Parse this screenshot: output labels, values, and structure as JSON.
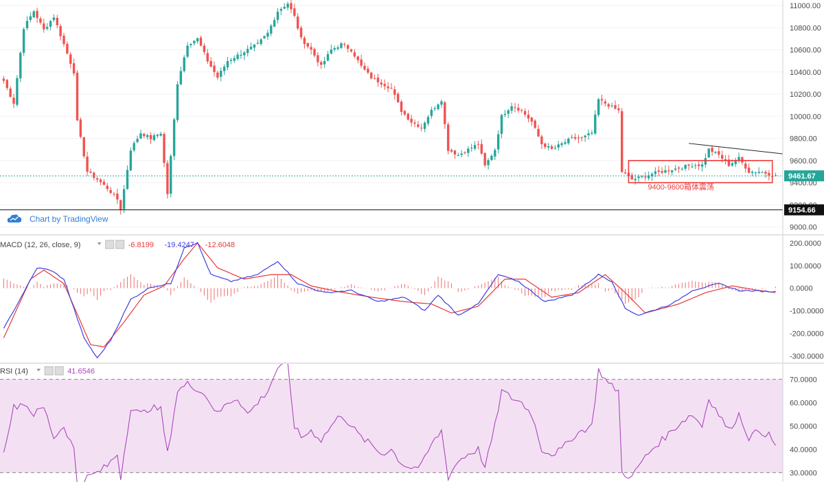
{
  "watermark": {
    "text": "Chart by TradingView"
  },
  "colors": {
    "up": "#26a69a",
    "down": "#ef5350",
    "macd": "#3f3fe0",
    "signal": "#e53935",
    "hist": "#ef6f6f",
    "rsi": "#ab47bc",
    "rsi_band": "#f3e1f3",
    "box": "#ef3b3b",
    "price_line": "#26a69a",
    "low_line": "#111111"
  },
  "chart_data": [
    {
      "type": "candlestick",
      "name": "price",
      "y_ticks": [
        "11000.00",
        "10800.00",
        "10600.00",
        "10400.00",
        "10200.00",
        "10000.00",
        "9800.00",
        "9600.00",
        "9400.00",
        "9200.00",
        "9000.00"
      ],
      "y_tick_values": [
        11000,
        10800,
        10600,
        10400,
        10200,
        10000,
        9800,
        9600,
        9400,
        9200,
        9000
      ],
      "ylim": [
        8960,
        11050
      ],
      "last_price": {
        "value": 9461.67,
        "label": "9461.67"
      },
      "low_line": {
        "value": 9154.66,
        "label": "9154.66"
      },
      "box": {
        "low": 9400,
        "high": 9600,
        "start_index": 187,
        "end_index": 230
      },
      "annotation": "9400-9600箱体震荡",
      "trendline": {
        "from_index": 205,
        "from_value": 9755,
        "to_index": 240,
        "to_value": 9640
      },
      "anchors": [
        [
          0,
          10320
        ],
        [
          3,
          10120
        ],
        [
          6,
          10800
        ],
        [
          9,
          10950
        ],
        [
          12,
          10780
        ],
        [
          15,
          10900
        ],
        [
          18,
          10650
        ],
        [
          21,
          10400
        ],
        [
          22,
          9950
        ],
        [
          25,
          9500
        ],
        [
          28,
          9430
        ],
        [
          31,
          9350
        ],
        [
          34,
          9250
        ],
        [
          35,
          9160
        ],
        [
          38,
          9700
        ],
        [
          41,
          9850
        ],
        [
          44,
          9800
        ],
        [
          47,
          9850
        ],
        [
          49,
          9300
        ],
        [
          52,
          10300
        ],
        [
          55,
          10650
        ],
        [
          58,
          10700
        ],
        [
          61,
          10500
        ],
        [
          64,
          10350
        ],
        [
          67,
          10500
        ],
        [
          70,
          10550
        ],
        [
          73,
          10600
        ],
        [
          76,
          10650
        ],
        [
          79,
          10750
        ],
        [
          82,
          10950
        ],
        [
          85,
          11020
        ],
        [
          87,
          10900
        ],
        [
          89,
          10700
        ],
        [
          92,
          10600
        ],
        [
          95,
          10450
        ],
        [
          98,
          10600
        ],
        [
          101,
          10650
        ],
        [
          104,
          10600
        ],
        [
          107,
          10450
        ],
        [
          110,
          10350
        ],
        [
          113,
          10300
        ],
        [
          116,
          10250
        ],
        [
          119,
          10050
        ],
        [
          122,
          9950
        ],
        [
          125,
          9900
        ],
        [
          128,
          10050
        ],
        [
          131,
          10150
        ],
        [
          133,
          9700
        ],
        [
          136,
          9650
        ],
        [
          139,
          9700
        ],
        [
          142,
          9750
        ],
        [
          144,
          9550
        ],
        [
          147,
          9700
        ],
        [
          149,
          10000
        ],
        [
          152,
          10100
        ],
        [
          155,
          10050
        ],
        [
          158,
          9950
        ],
        [
          161,
          9750
        ],
        [
          164,
          9700
        ],
        [
          167,
          9750
        ],
        [
          170,
          9800
        ],
        [
          173,
          9800
        ],
        [
          176,
          9850
        ],
        [
          178,
          10150
        ],
        [
          181,
          10100
        ],
        [
          184,
          10050
        ],
        [
          185,
          9500
        ],
        [
          188,
          9430
        ],
        [
          191,
          9450
        ],
        [
          194,
          9480
        ],
        [
          197,
          9500
        ],
        [
          200,
          9520
        ],
        [
          203,
          9540
        ],
        [
          206,
          9560
        ],
        [
          209,
          9560
        ],
        [
          211,
          9700
        ],
        [
          214,
          9650
        ],
        [
          217,
          9560
        ],
        [
          220,
          9620
        ],
        [
          223,
          9500
        ],
        [
          226,
          9500
        ],
        [
          229,
          9480
        ],
        [
          231,
          9461
        ]
      ]
    },
    {
      "type": "line",
      "name": "MACD",
      "legend": {
        "name": "MACD (12, 26, close, 9)",
        "values": [
          "-6.8199",
          "-19.4247",
          "-12.6048"
        ]
      },
      "y_ticks": [
        "200.0000",
        "100.0000",
        "0.0000",
        "-100.0000",
        "-200.0000",
        "-300.0000"
      ],
      "y_tick_values": [
        200,
        100,
        0,
        -100,
        -200,
        -300
      ],
      "ylim": [
        -320,
        230
      ],
      "series": [
        {
          "name": "MACD",
          "anchors": [
            [
              0,
              -180
            ],
            [
              10,
              90
            ],
            [
              14,
              80
            ],
            [
              18,
              40
            ],
            [
              24,
              -220
            ],
            [
              28,
              -310
            ],
            [
              32,
              -230
            ],
            [
              38,
              -50
            ],
            [
              44,
              5
            ],
            [
              50,
              20
            ],
            [
              54,
              180
            ],
            [
              58,
              200
            ],
            [
              62,
              60
            ],
            [
              68,
              30
            ],
            [
              76,
              60
            ],
            [
              82,
              120
            ],
            [
              88,
              20
            ],
            [
              96,
              -20
            ],
            [
              104,
              -10
            ],
            [
              112,
              -60
            ],
            [
              120,
              -40
            ],
            [
              126,
              -100
            ],
            [
              130,
              -30
            ],
            [
              136,
              -120
            ],
            [
              142,
              -70
            ],
            [
              148,
              60
            ],
            [
              154,
              30
            ],
            [
              162,
              -60
            ],
            [
              170,
              -30
            ],
            [
              178,
              60
            ],
            [
              182,
              30
            ],
            [
              186,
              -90
            ],
            [
              190,
              -120
            ],
            [
              200,
              -70
            ],
            [
              206,
              -10
            ],
            [
              214,
              20
            ],
            [
              220,
              -10
            ],
            [
              230,
              -15
            ]
          ]
        },
        {
          "name": "Signal",
          "anchors": [
            [
              0,
              -220
            ],
            [
              8,
              40
            ],
            [
              12,
              80
            ],
            [
              18,
              20
            ],
            [
              26,
              -250
            ],
            [
              30,
              -260
            ],
            [
              36,
              -150
            ],
            [
              42,
              -30
            ],
            [
              48,
              10
            ],
            [
              54,
              130
            ],
            [
              58,
              200
            ],
            [
              64,
              90
            ],
            [
              72,
              40
            ],
            [
              80,
              60
            ],
            [
              86,
              60
            ],
            [
              92,
              10
            ],
            [
              100,
              -15
            ],
            [
              110,
              -40
            ],
            [
              120,
              -60
            ],
            [
              128,
              -70
            ],
            [
              134,
              -110
            ],
            [
              142,
              -80
            ],
            [
              150,
              40
            ],
            [
              156,
              40
            ],
            [
              164,
              -40
            ],
            [
              172,
              -20
            ],
            [
              180,
              60
            ],
            [
              186,
              -20
            ],
            [
              192,
              -110
            ],
            [
              202,
              -70
            ],
            [
              210,
              -20
            ],
            [
              218,
              10
            ],
            [
              226,
              -10
            ],
            [
              231,
              -20
            ]
          ]
        }
      ],
      "histogram_note": "MACD minus signal"
    },
    {
      "type": "line",
      "name": "RSI",
      "legend": {
        "name": "RSI (14)",
        "values": [
          "41.6546"
        ]
      },
      "y_ticks": [
        "70.0000",
        "60.0000",
        "50.0000",
        "40.0000",
        "30.0000"
      ],
      "y_tick_values": [
        70,
        60,
        50,
        40,
        30
      ],
      "ylim": [
        26,
        76
      ],
      "band": [
        30,
        70
      ],
      "anchors": [
        [
          0,
          40
        ],
        [
          3,
          58
        ],
        [
          6,
          60
        ],
        [
          9,
          55
        ],
        [
          12,
          58
        ],
        [
          15,
          45
        ],
        [
          18,
          50
        ],
        [
          21,
          40
        ],
        [
          22,
          25
        ],
        [
          25,
          28
        ],
        [
          28,
          30
        ],
        [
          31,
          33
        ],
        [
          34,
          38
        ],
        [
          35,
          28
        ],
        [
          38,
          58
        ],
        [
          41,
          55
        ],
        [
          44,
          58
        ],
        [
          47,
          57
        ],
        [
          49,
          38
        ],
        [
          52,
          65
        ],
        [
          55,
          68
        ],
        [
          58,
          66
        ],
        [
          61,
          62
        ],
        [
          64,
          55
        ],
        [
          67,
          60
        ],
        [
          70,
          62
        ],
        [
          73,
          55
        ],
        [
          76,
          60
        ],
        [
          79,
          65
        ],
        [
          82,
          75
        ],
        [
          85,
          76
        ],
        [
          87,
          50
        ],
        [
          89,
          45
        ],
        [
          92,
          48
        ],
        [
          95,
          44
        ],
        [
          98,
          50
        ],
        [
          101,
          55
        ],
        [
          104,
          50
        ],
        [
          107,
          45
        ],
        [
          110,
          42
        ],
        [
          113,
          38
        ],
        [
          116,
          40
        ],
        [
          119,
          34
        ],
        [
          122,
          32
        ],
        [
          125,
          33
        ],
        [
          128,
          42
        ],
        [
          131,
          48
        ],
        [
          133,
          28
        ],
        [
          136,
          35
        ],
        [
          139,
          38
        ],
        [
          142,
          40
        ],
        [
          144,
          32
        ],
        [
          147,
          50
        ],
        [
          149,
          65
        ],
        [
          152,
          62
        ],
        [
          155,
          60
        ],
        [
          158,
          55
        ],
        [
          161,
          40
        ],
        [
          164,
          38
        ],
        [
          167,
          40
        ],
        [
          170,
          45
        ],
        [
          173,
          48
        ],
        [
          176,
          50
        ],
        [
          178,
          74
        ],
        [
          181,
          68
        ],
        [
          184,
          65
        ],
        [
          185,
          30
        ],
        [
          188,
          28
        ],
        [
          191,
          35
        ],
        [
          194,
          40
        ],
        [
          197,
          44
        ],
        [
          200,
          48
        ],
        [
          203,
          52
        ],
        [
          206,
          55
        ],
        [
          209,
          50
        ],
        [
          211,
          62
        ],
        [
          214,
          55
        ],
        [
          217,
          48
        ],
        [
          220,
          55
        ],
        [
          223,
          45
        ],
        [
          226,
          48
        ],
        [
          229,
          46
        ],
        [
          231,
          41.65
        ]
      ]
    }
  ]
}
